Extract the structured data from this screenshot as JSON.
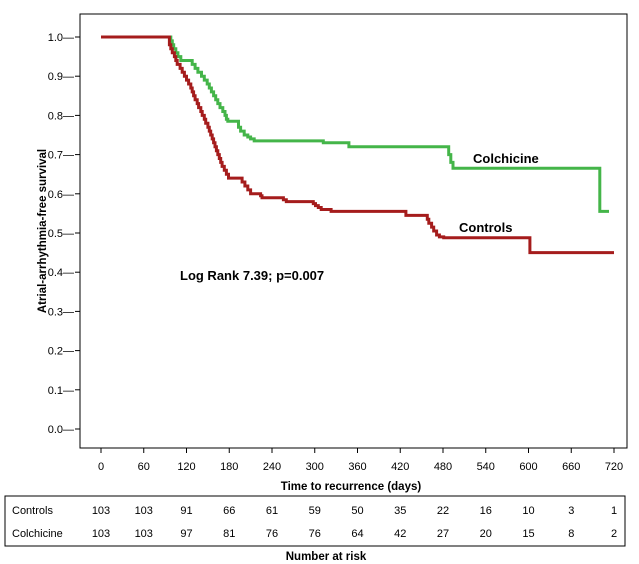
{
  "chart_data": {
    "type": "line",
    "step": true,
    "xlabel": "Time to recurrence (days)",
    "ylabel": "Atrial-arrhythmia-free survival",
    "xlim": [
      0,
      720
    ],
    "ylim": [
      0,
      1.0
    ],
    "x_ticks": [
      "0",
      "60",
      "120",
      "180",
      "240",
      "300",
      "360",
      "420",
      "480",
      "540",
      "600",
      "660",
      "720"
    ],
    "y_ticks": [
      "0.0",
      "0.1",
      "0.2",
      "0.3",
      "0.4",
      "0.5",
      "0.6",
      "0.7",
      "0.8",
      "0.9",
      "1.0"
    ],
    "grid": false,
    "annotation": "Log Rank 7.39; p=0.007",
    "series": [
      {
        "name": "Colchicine",
        "color": "#44b549",
        "points": [
          [
            0,
            1.0
          ],
          [
            96,
            1.0
          ],
          [
            98,
            0.99
          ],
          [
            100,
            0.98
          ],
          [
            102,
            0.97
          ],
          [
            105,
            0.96
          ],
          [
            108,
            0.95
          ],
          [
            112,
            0.94
          ],
          [
            126,
            0.94
          ],
          [
            128,
            0.93
          ],
          [
            132,
            0.92
          ],
          [
            136,
            0.91
          ],
          [
            141,
            0.9
          ],
          [
            145,
            0.89
          ],
          [
            149,
            0.88
          ],
          [
            152,
            0.87
          ],
          [
            155,
            0.86
          ],
          [
            158,
            0.85
          ],
          [
            161,
            0.84
          ],
          [
            164,
            0.83
          ],
          [
            167,
            0.82
          ],
          [
            171,
            0.81
          ],
          [
            174,
            0.8
          ],
          [
            176,
            0.79
          ],
          [
            178,
            0.785
          ],
          [
            190,
            0.785
          ],
          [
            193,
            0.77
          ],
          [
            196,
            0.76
          ],
          [
            201,
            0.75
          ],
          [
            206,
            0.745
          ],
          [
            210,
            0.74
          ],
          [
            215,
            0.735
          ],
          [
            310,
            0.735
          ],
          [
            312,
            0.73
          ],
          [
            345,
            0.73
          ],
          [
            348,
            0.72
          ],
          [
            485,
            0.72
          ],
          [
            488,
            0.7
          ],
          [
            491,
            0.68
          ],
          [
            494,
            0.665
          ],
          [
            697,
            0.665
          ],
          [
            700,
            0.555
          ],
          [
            713,
            0.555
          ]
        ]
      },
      {
        "name": "Controls",
        "color": "#a51c1c",
        "points": [
          [
            0,
            1.0
          ],
          [
            94,
            1.0
          ],
          [
            96,
            0.98
          ],
          [
            98,
            0.97
          ],
          [
            100,
            0.96
          ],
          [
            103,
            0.95
          ],
          [
            105,
            0.94
          ],
          [
            107,
            0.93
          ],
          [
            111,
            0.92
          ],
          [
            114,
            0.91
          ],
          [
            117,
            0.9
          ],
          [
            120,
            0.89
          ],
          [
            123,
            0.88
          ],
          [
            126,
            0.87
          ],
          [
            128,
            0.86
          ],
          [
            130,
            0.85
          ],
          [
            132,
            0.84
          ],
          [
            135,
            0.83
          ],
          [
            137,
            0.82
          ],
          [
            140,
            0.81
          ],
          [
            142,
            0.8
          ],
          [
            145,
            0.79
          ],
          [
            147,
            0.78
          ],
          [
            150,
            0.77
          ],
          [
            152,
            0.76
          ],
          [
            154,
            0.75
          ],
          [
            156,
            0.74
          ],
          [
            158,
            0.73
          ],
          [
            160,
            0.72
          ],
          [
            162,
            0.71
          ],
          [
            164,
            0.7
          ],
          [
            166,
            0.69
          ],
          [
            168,
            0.68
          ],
          [
            170,
            0.67
          ],
          [
            173,
            0.66
          ],
          [
            176,
            0.65
          ],
          [
            179,
            0.64
          ],
          [
            195,
            0.64
          ],
          [
            198,
            0.63
          ],
          [
            202,
            0.62
          ],
          [
            206,
            0.61
          ],
          [
            210,
            0.6
          ],
          [
            220,
            0.6
          ],
          [
            224,
            0.595
          ],
          [
            226,
            0.59
          ],
          [
            252,
            0.59
          ],
          [
            256,
            0.585
          ],
          [
            260,
            0.58
          ],
          [
            295,
            0.58
          ],
          [
            298,
            0.575
          ],
          [
            301,
            0.57
          ],
          [
            305,
            0.565
          ],
          [
            309,
            0.56
          ],
          [
            320,
            0.56
          ],
          [
            323,
            0.555
          ],
          [
            425,
            0.555
          ],
          [
            428,
            0.545
          ],
          [
            455,
            0.545
          ],
          [
            458,
            0.535
          ],
          [
            460,
            0.525
          ],
          [
            464,
            0.515
          ],
          [
            467,
            0.505
          ],
          [
            471,
            0.495
          ],
          [
            475,
            0.49
          ],
          [
            478,
            0.49
          ],
          [
            481,
            0.488
          ],
          [
            600,
            0.488
          ],
          [
            602,
            0.45
          ],
          [
            720,
            0.45
          ]
        ]
      }
    ],
    "risk_table": {
      "title": "Number at risk",
      "times": [
        "0",
        "60",
        "120",
        "180",
        "240",
        "300",
        "360",
        "420",
        "480",
        "540",
        "600",
        "660",
        "720"
      ],
      "rows": [
        {
          "label": "Controls",
          "values": [
            "103",
            "103",
            "91",
            "66",
            "61",
            "59",
            "50",
            "35",
            "22",
            "16",
            "10",
            "3",
            "1"
          ]
        },
        {
          "label": "Colchicine",
          "values": [
            "103",
            "103",
            "97",
            "81",
            "76",
            "76",
            "64",
            "42",
            "27",
            "20",
            "15",
            "8",
            "2"
          ]
        }
      ]
    }
  }
}
